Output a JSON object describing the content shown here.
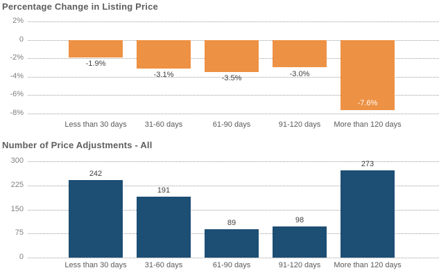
{
  "styles": {
    "background": "#FFFFFF",
    "title_color": "#5D5D5D",
    "axis_tick_color": "#7F7F7F",
    "category_label_color": "#595959",
    "gridline_color": "#9A9A9A",
    "orange": "#ED9144",
    "navy": "#1D4E74"
  },
  "chart_data": [
    {
      "type": "bar",
      "title": "Percentage Change in Listing Price",
      "categories": [
        "Less than 30 days",
        "31-60 days",
        "61-90 days",
        "91-120 days",
        "More than 120 days"
      ],
      "values": [
        -1.9,
        -3.1,
        -3.5,
        -3.0,
        -7.6
      ],
      "bar_labels": [
        "-1.9%",
        "-3.1%",
        "-3.5%",
        "-3.0%",
        "-7.6%"
      ],
      "label_inside": [
        false,
        false,
        false,
        false,
        true
      ],
      "ytick_values": [
        2,
        0,
        -2,
        -4,
        -6,
        -8
      ],
      "ytick_labels": [
        "2%",
        "0",
        "-2%",
        "-4%",
        "-6%",
        "-8%"
      ],
      "ylim": [
        -8,
        2
      ],
      "xlabel": "",
      "ylabel": "",
      "grid": true,
      "legend": "none",
      "bar_color": "#ED9144",
      "label_color": "#3E3E3E",
      "label_inside_color": "#FFFFFF"
    },
    {
      "type": "bar",
      "title": "Number of Price Adjustments - All",
      "categories": [
        "Less than 30 days",
        "31-60 days",
        "61-90 days",
        "91-120 days",
        "More than 120 days"
      ],
      "values": [
        242,
        191,
        89,
        98,
        273
      ],
      "bar_labels": [
        "242",
        "191",
        "89",
        "98",
        "273"
      ],
      "label_inside": [
        false,
        false,
        false,
        false,
        false
      ],
      "ytick_values": [
        300,
        225,
        150,
        75,
        0
      ],
      "ytick_labels": [
        "300",
        "225",
        "150",
        "75",
        "0"
      ],
      "ylim": [
        0,
        300
      ],
      "xlabel": "",
      "ylabel": "",
      "grid": true,
      "legend": "none",
      "bar_color": "#1D4E74",
      "label_color": "#3E3E3E",
      "label_inside_color": "#FFFFFF"
    }
  ]
}
